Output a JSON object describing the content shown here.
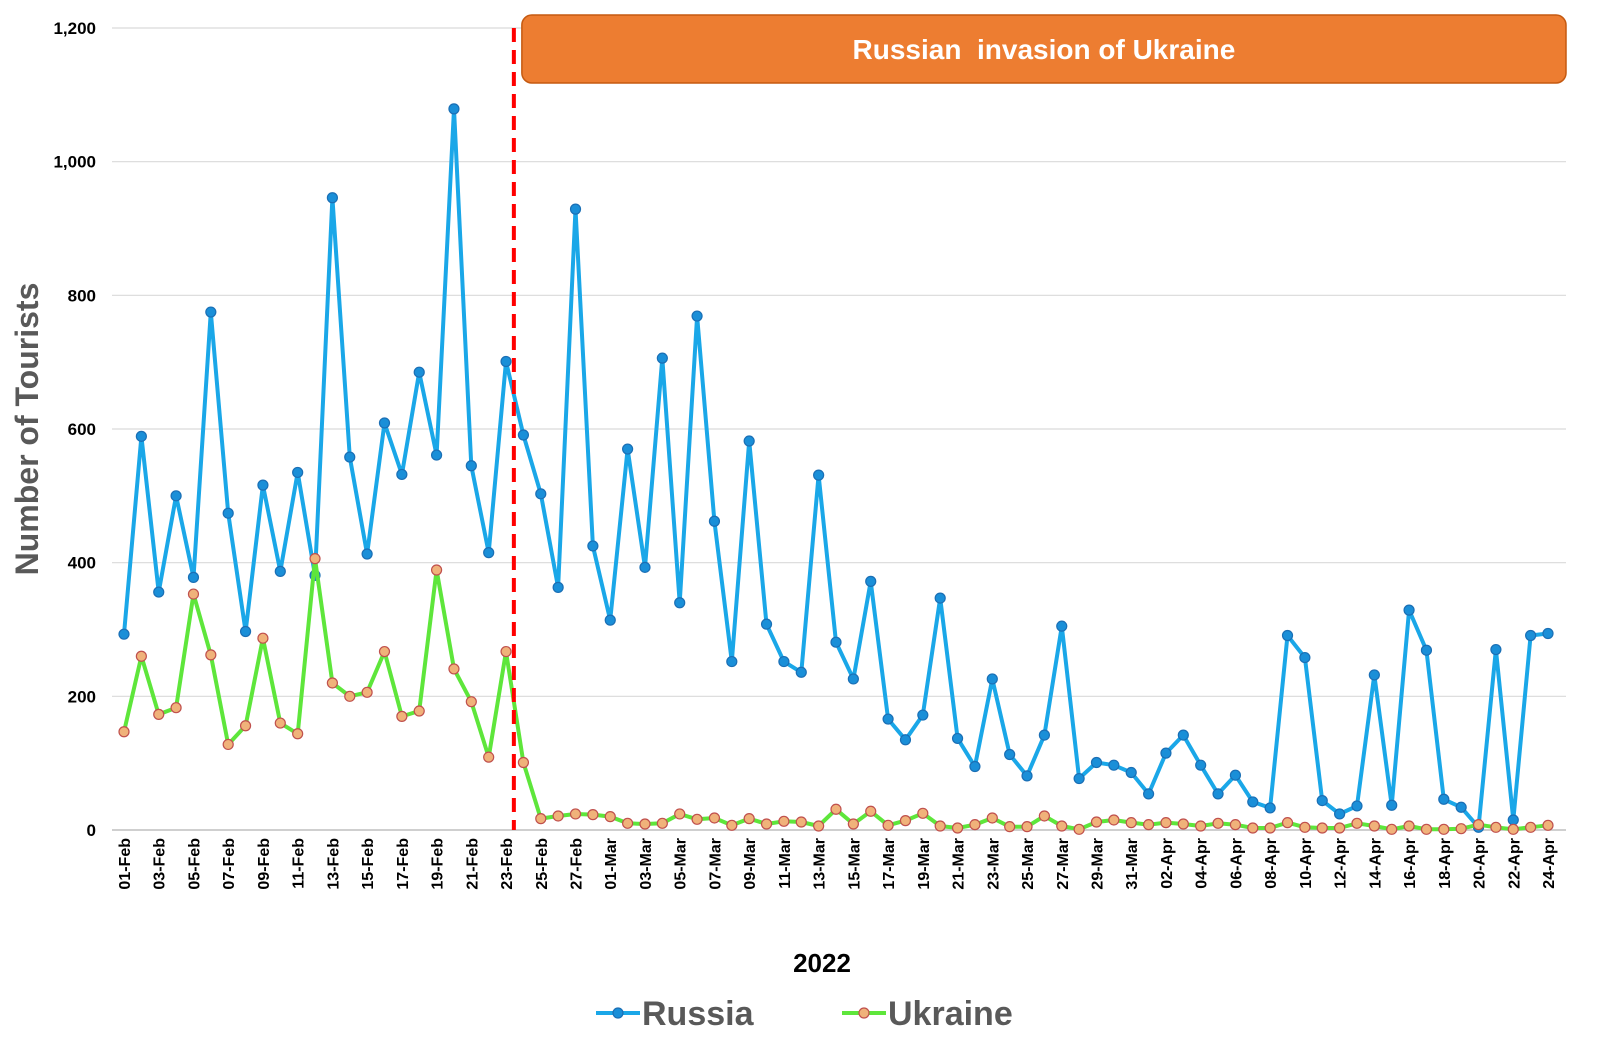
{
  "chart_data": {
    "type": "line",
    "xlabel": "2022",
    "ylabel": "Number of Tourists",
    "ylim": [
      0,
      1200
    ],
    "yticks": [
      0,
      200,
      400,
      600,
      800,
      1000,
      1200
    ],
    "ytick_labels": [
      "0",
      "200",
      "400",
      "600",
      "800",
      "1,000",
      "1,200"
    ],
    "grid": true,
    "legend_position": "bottom",
    "x": [
      "01-Feb",
      "02-Feb",
      "03-Feb",
      "04-Feb",
      "05-Feb",
      "06-Feb",
      "07-Feb",
      "08-Feb",
      "09-Feb",
      "10-Feb",
      "11-Feb",
      "12-Feb",
      "13-Feb",
      "14-Feb",
      "15-Feb",
      "16-Feb",
      "17-Feb",
      "18-Feb",
      "19-Feb",
      "20-Feb",
      "21-Feb",
      "22-Feb",
      "23-Feb",
      "24-Feb",
      "25-Feb",
      "26-Feb",
      "27-Feb",
      "28-Feb",
      "01-Mar",
      "02-Mar",
      "03-Mar",
      "04-Mar",
      "05-Mar",
      "06-Mar",
      "07-Mar",
      "08-Mar",
      "09-Mar",
      "10-Mar",
      "11-Mar",
      "12-Mar",
      "13-Mar",
      "14-Mar",
      "15-Mar",
      "16-Mar",
      "17-Mar",
      "18-Mar",
      "19-Mar",
      "20-Mar",
      "21-Mar",
      "22-Mar",
      "23-Mar",
      "24-Mar",
      "25-Mar",
      "26-Mar",
      "27-Mar",
      "28-Mar",
      "29-Mar",
      "30-Mar",
      "31-Mar",
      "01-Apr",
      "02-Apr",
      "03-Apr",
      "04-Apr",
      "05-Apr",
      "06-Apr",
      "07-Apr",
      "08-Apr",
      "09-Apr",
      "10-Apr",
      "11-Apr",
      "12-Apr",
      "13-Apr",
      "14-Apr",
      "15-Apr",
      "16-Apr",
      "17-Apr",
      "18-Apr",
      "19-Apr",
      "20-Apr",
      "21-Apr",
      "22-Apr",
      "23-Apr",
      "24-Apr"
    ],
    "series": [
      {
        "name": "Russia",
        "color": "#1aa7e8",
        "marker_fill": "#1a8fd8",
        "marker_edge": "#1a6fb5",
        "values": [
          293,
          589,
          356,
          500,
          378,
          775,
          474,
          297,
          516,
          387,
          535,
          381,
          946,
          558,
          413,
          609,
          532,
          685,
          561,
          1079,
          545,
          415,
          701,
          591,
          503,
          363,
          929,
          425,
          314,
          570,
          393,
          706,
          340,
          769,
          462,
          252,
          582,
          308,
          252,
          236,
          531,
          281,
          226,
          372,
          166,
          135,
          172,
          347,
          137,
          95,
          226,
          113,
          81,
          142,
          305,
          77,
          101,
          97,
          86,
          54,
          115,
          142,
          97,
          54,
          82,
          42,
          33,
          291,
          258,
          44,
          24,
          36,
          232,
          37,
          329,
          269,
          46,
          34,
          4,
          270,
          15,
          291,
          294
        ]
      },
      {
        "name": "Ukraine",
        "color": "#5ee63b",
        "marker_fill": "#f0b27a",
        "marker_edge": "#c0504d",
        "values": [
          147,
          260,
          173,
          183,
          353,
          262,
          128,
          156,
          287,
          160,
          144,
          406,
          220,
          200,
          206,
          267,
          170,
          178,
          389,
          241,
          192,
          109,
          267,
          101,
          17,
          21,
          24,
          23,
          20,
          10,
          9,
          10,
          24,
          16,
          18,
          7,
          17,
          9,
          13,
          12,
          6,
          31,
          9,
          28,
          7,
          14,
          25,
          6,
          3,
          8,
          18,
          5,
          5,
          21,
          6,
          1,
          12,
          15,
          11,
          8,
          11,
          9,
          6,
          10,
          8,
          3,
          3,
          11,
          4,
          3,
          3,
          10,
          6,
          1,
          6,
          1,
          1,
          2,
          8,
          4,
          1,
          4,
          7
        ]
      }
    ],
    "event_marker": {
      "after_category": "23-Feb",
      "label": "Russian  invasion of Ukraine",
      "line_color": "#ff0000",
      "banner_color": "#ed7d31"
    }
  }
}
